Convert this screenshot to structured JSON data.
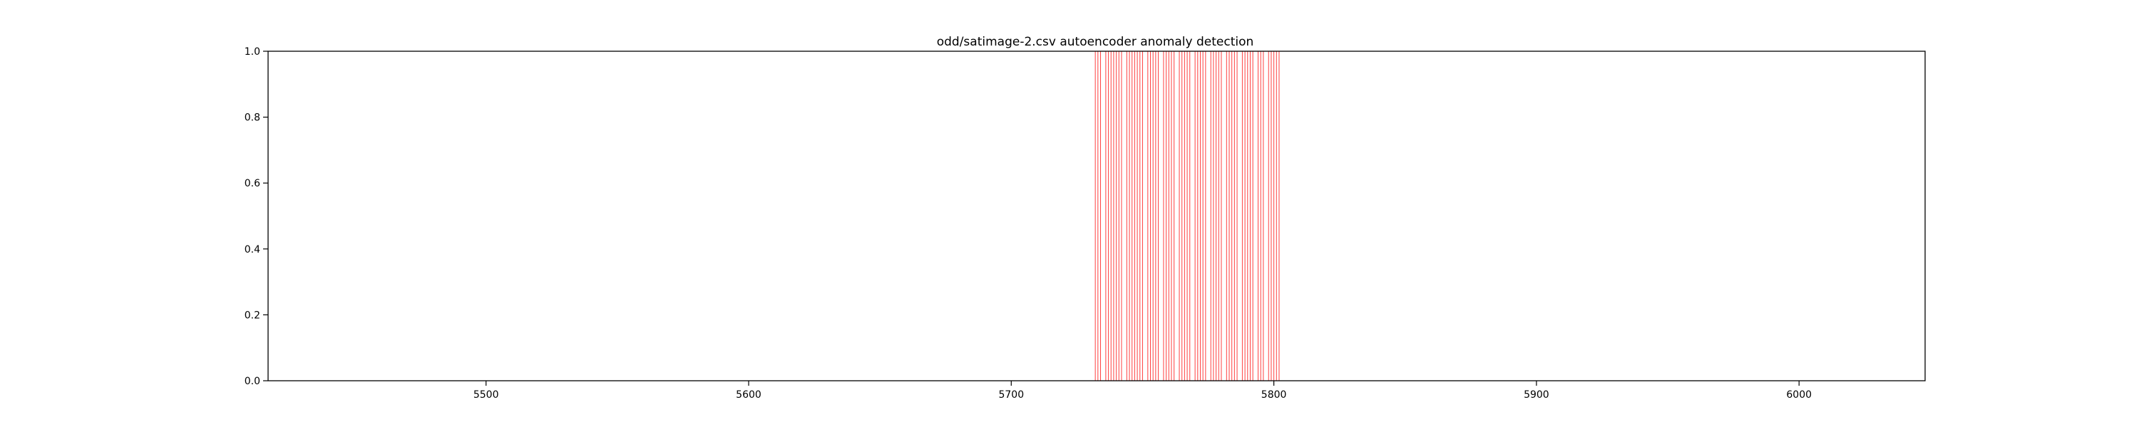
{
  "chart_data": {
    "type": "bar",
    "title": "odd/satimage-2.csv autoencoder anomaly detection",
    "xlabel": "",
    "ylabel": "",
    "xlim": [
      5417,
      6048
    ],
    "ylim": [
      0.0,
      1.0
    ],
    "grid": false,
    "x_ticks": [
      5500,
      5600,
      5700,
      5800,
      5900,
      6000
    ],
    "x_tick_labels": [
      "5500",
      "5600",
      "5700",
      "5800",
      "5900",
      "6000"
    ],
    "y_ticks": [
      0.0,
      0.2,
      0.4,
      0.6,
      0.8,
      1.0
    ],
    "y_tick_labels": [
      "0.0",
      "0.2",
      "0.4",
      "0.6",
      "0.8",
      "1.0"
    ],
    "anomaly_color": "#ff0000",
    "anomaly_x": [
      5732,
      5733,
      5734,
      5736,
      5737,
      5738,
      5739,
      5740,
      5741,
      5742,
      5744,
      5745,
      5746,
      5747,
      5748,
      5749,
      5750,
      5752,
      5753,
      5754,
      5755,
      5756,
      5758,
      5759,
      5760,
      5761,
      5762,
      5764,
      5765,
      5766,
      5767,
      5768,
      5770,
      5771,
      5772,
      5773,
      5774,
      5776,
      5777,
      5778,
      5779,
      5780,
      5782,
      5783,
      5784,
      5785,
      5786,
      5788,
      5789,
      5790,
      5791,
      5792,
      5794,
      5795,
      5796,
      5798,
      5799,
      5800,
      5801,
      5802
    ]
  }
}
